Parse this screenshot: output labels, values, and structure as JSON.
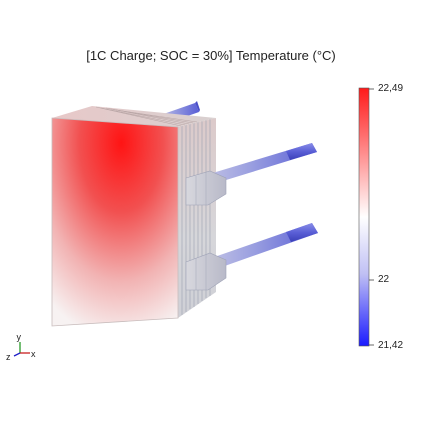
{
  "title": "[1C Charge; SOC = 30%] Temperature (°C)",
  "colorbar": {
    "max_label": "22,49",
    "mid_label": "22",
    "min_label": "21,42",
    "max_value": 22.49,
    "mid_value": 22,
    "min_value": 21.42,
    "colors": {
      "hot": "#ff1a1a",
      "neutral": "#ffffff",
      "cold": "#1a1aff"
    }
  },
  "axes_triad": {
    "y": "y",
    "z": "z",
    "x": "x"
  }
}
